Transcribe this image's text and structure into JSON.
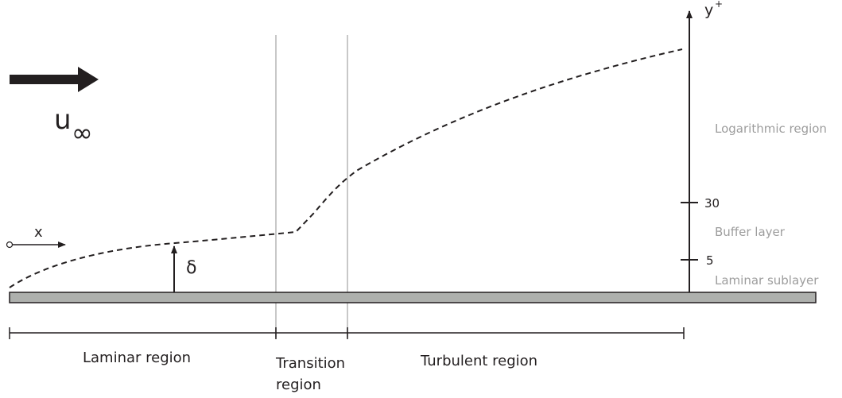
{
  "flow": {
    "velocity_symbol": "u",
    "velocity_subscript": "∞"
  },
  "x_axis_label": "x",
  "thickness_symbol": "δ",
  "yplus_axis": {
    "label": "y",
    "superscript": "+",
    "ticks": [
      "30",
      "5"
    ]
  },
  "wall_regions": [
    "Logarithmic region",
    "Buffer layer",
    "Laminar sublayer"
  ],
  "flow_regions": {
    "laminar": "Laminar region",
    "transition_line1": "Transition",
    "transition_line2": "region",
    "turbulent": "Turbulent region"
  },
  "colors": {
    "ink": "#231f20",
    "plate_fill": "#aeb0ad",
    "divider": "#c8c8c8",
    "muted_text": "#9d9d9d"
  }
}
